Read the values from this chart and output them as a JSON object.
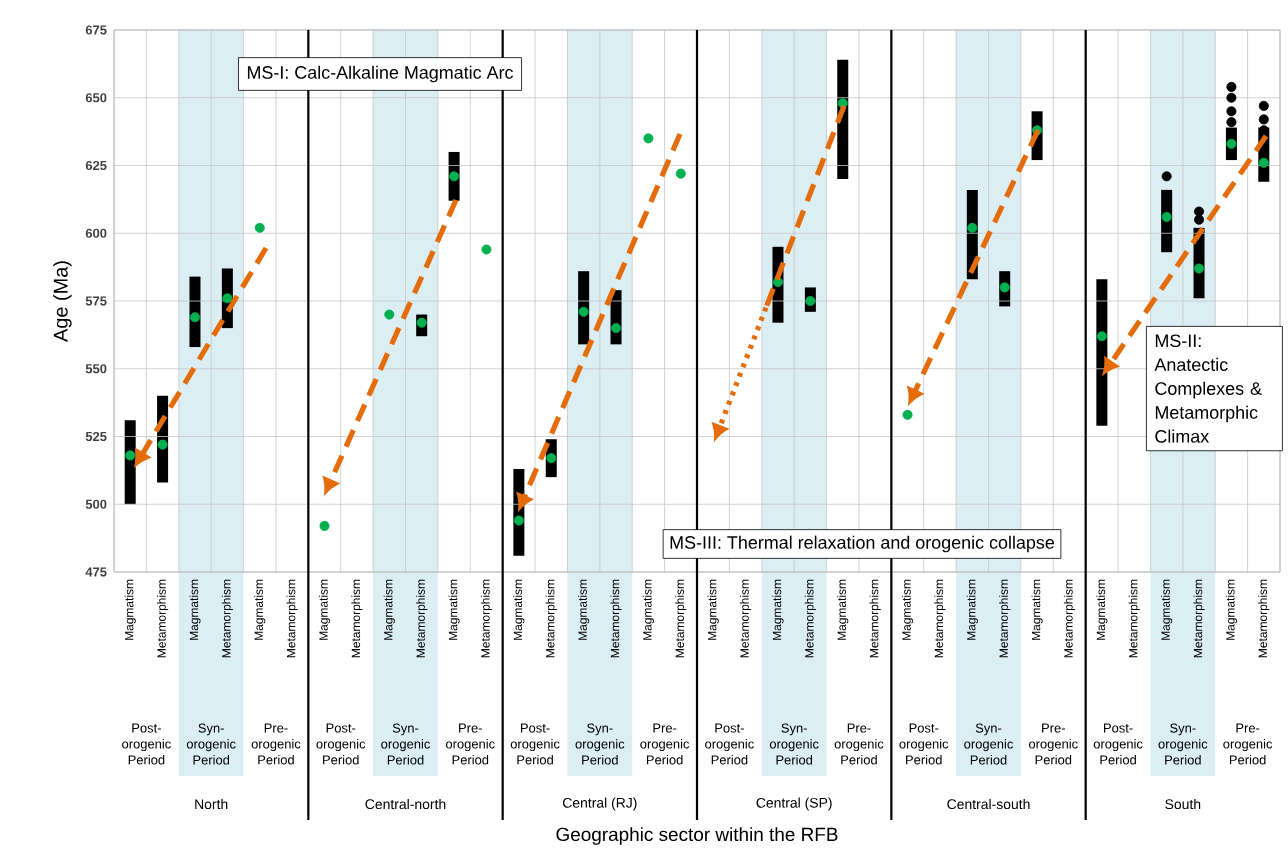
{
  "chart_data": {
    "type": "bar",
    "ylabel": "Age (Ma)",
    "categories": [
      "Magmatism",
      "Metamorphism",
      "Magmatism",
      "Metamorphism",
      "Magmatism",
      "Metamorphism",
      "Magmatism",
      "Metamorphism",
      "Magmatism",
      "Metamorphism",
      "Magmatism",
      "Metamorphism",
      "Magmatism",
      "Metamorphism",
      "Magmatism",
      "Metamorphism",
      "Magmatism",
      "Metamorphism",
      "Magmatism",
      "Metamorphism",
      "Magmatism",
      "Metamorphism",
      "Magmatism",
      "Metamorphism",
      "Magmatism",
      "Metamorphism",
      "Magmatism",
      "Metamorphism",
      "Magmatism",
      "Metamorphism",
      "Magmatism",
      "Metamorphism",
      "Magmatism",
      "Metamorphism",
      "Magmatism",
      "Metamorphism"
    ],
    "ylim": [
      475,
      675
    ],
    "yticks": [
      475,
      500,
      525,
      550,
      575,
      600,
      625,
      650,
      675
    ],
    "grid": true,
    "marker": "circle",
    "series": [
      {
        "type": "bar",
        "color": "#000000",
        "values": [
          31,
          32,
          26,
          22,
          null,
          null,
          null,
          null,
          null,
          8,
          18,
          null,
          32,
          14,
          27,
          20,
          null,
          null,
          null,
          null,
          28,
          9,
          44,
          null,
          null,
          null,
          33,
          13,
          18,
          null,
          54,
          null,
          23,
          26,
          12,
          20
        ],
        "base": [
          500,
          508,
          558,
          565,
          null,
          null,
          null,
          null,
          null,
          562,
          612,
          null,
          481,
          510,
          559,
          559,
          null,
          null,
          null,
          null,
          567,
          571,
          620,
          null,
          null,
          null,
          583,
          573,
          627,
          null,
          529,
          null,
          593,
          576,
          627,
          619
        ]
      },
      {
        "type": "scatter",
        "color": "#00b050",
        "values": [
          518,
          522,
          569,
          576,
          602,
          null,
          492,
          null,
          570,
          567,
          621,
          594,
          494,
          517,
          571,
          565,
          635,
          622,
          null,
          null,
          582,
          575,
          648,
          null,
          533,
          null,
          602,
          580,
          638,
          null,
          562,
          null,
          606,
          587,
          633,
          626
        ]
      },
      {
        "type": "scatter",
        "color": "#000000",
        "values": [
          null,
          null,
          null,
          null,
          null,
          null,
          null,
          null,
          null,
          null,
          null,
          null,
          null,
          null,
          null,
          null,
          null,
          null,
          null,
          null,
          null,
          null,
          null,
          null,
          null,
          null,
          null,
          null,
          null,
          null,
          null,
          null,
          621,
          605,
          641,
          638
        ]
      },
      {
        "type": "scatter",
        "color": "#000000",
        "values": [
          null,
          null,
          null,
          null,
          null,
          null,
          null,
          null,
          null,
          null,
          null,
          null,
          null,
          null,
          null,
          null,
          null,
          null,
          null,
          null,
          null,
          null,
          null,
          null,
          null,
          null,
          null,
          null,
          null,
          null,
          null,
          null,
          null,
          608,
          645,
          642
        ]
      },
      {
        "type": "scatter",
        "color": "#000000",
        "values": [
          null,
          null,
          null,
          null,
          null,
          null,
          null,
          null,
          null,
          null,
          null,
          null,
          null,
          null,
          null,
          null,
          null,
          null,
          null,
          null,
          null,
          null,
          null,
          null,
          null,
          null,
          null,
          null,
          null,
          null,
          null,
          null,
          null,
          null,
          650,
          647
        ]
      },
      {
        "type": "scatter",
        "color": "#000000",
        "values": [
          null,
          null,
          null,
          null,
          null,
          null,
          null,
          null,
          null,
          null,
          null,
          null,
          null,
          null,
          null,
          null,
          null,
          null,
          null,
          null,
          null,
          null,
          null,
          null,
          null,
          null,
          null,
          null,
          null,
          null,
          null,
          null,
          null,
          null,
          654,
          null
        ]
      }
    ],
    "annotations": [
      "MS-I: Calc-Alkaline Magmatic Arc",
      "MS-II: Anatectic Complexes & Metamorphic Climax",
      "MS-III: Thermal relaxation and orogenic collapse",
      "Post-orogenic Period",
      "Syn-orogenic Period",
      "Pre-orogenic Period",
      "Post-orogenic Period",
      "Syn-orogenic Period",
      "Pre-orogenic Period",
      "Post-orogenic Period",
      "Syn-orogenic Period",
      "Pre-orogenic Period",
      "Post-orogenic Period",
      "Syn-orogenic Period",
      "Pre-orogenic Period",
      "Post-orogenic Period",
      "Syn-orogenic Period",
      "Pre-orogenic Period",
      "Post-orogenic Period",
      "Syn-orogenic Period",
      "Pre-orogenic Period",
      "North",
      "Central-north",
      "Central (RJ)",
      "Central (SP)",
      "Central-south",
      "South",
      "Geographic sector within the RFB"
    ]
  }
}
